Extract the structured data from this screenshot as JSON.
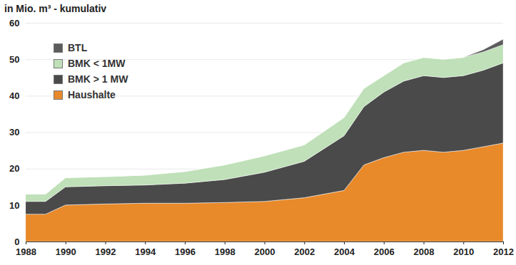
{
  "chart_data": {
    "type": "area",
    "title": "in Mio. m³ - kumulativ",
    "stacked": true,
    "grid": true,
    "legend": "top-left",
    "x": [
      1988,
      1989,
      1990,
      1992,
      1994,
      1996,
      1998,
      2000,
      2002,
      2004,
      2005,
      2006,
      2007,
      2008,
      2009,
      2010,
      2011,
      2012
    ],
    "xlim": [
      1988,
      2012
    ],
    "xticks": [
      1988,
      1990,
      1992,
      1994,
      1996,
      1998,
      2000,
      2002,
      2004,
      2006,
      2008,
      2010,
      2012
    ],
    "ylim": [
      0,
      60
    ],
    "yticks": [
      0,
      10,
      20,
      30,
      40,
      50,
      60
    ],
    "series": [
      {
        "name": "Haushalte",
        "color": "#e8892a",
        "values": [
          7.5,
          7.5,
          10,
          10.3,
          10.5,
          10.5,
          10.7,
          11,
          12,
          14,
          21,
          23,
          24.5,
          25,
          24.5,
          25,
          26,
          27
        ]
      },
      {
        "name": "BMK > 1 MW",
        "color": "#4a4a4a",
        "values": [
          3.5,
          3.5,
          5,
          5,
          5,
          5.5,
          6.3,
          8,
          10,
          15,
          16,
          18,
          19.5,
          20.5,
          20.5,
          20.5,
          21,
          22
        ]
      },
      {
        "name": "BMK < 1MW",
        "color": "#bfe0b8",
        "values": [
          2,
          2,
          2.5,
          2.5,
          2.7,
          3.2,
          4,
          4.5,
          4.5,
          5,
          5,
          4.5,
          5,
          5,
          5,
          5,
          5,
          5
        ]
      },
      {
        "name": "BTL",
        "color": "#5c5c5c",
        "values": [
          0,
          0,
          0,
          0,
          0,
          0,
          0,
          0,
          0,
          0,
          0,
          0,
          0,
          0,
          0,
          0,
          0.6,
          1.5
        ]
      }
    ]
  }
}
